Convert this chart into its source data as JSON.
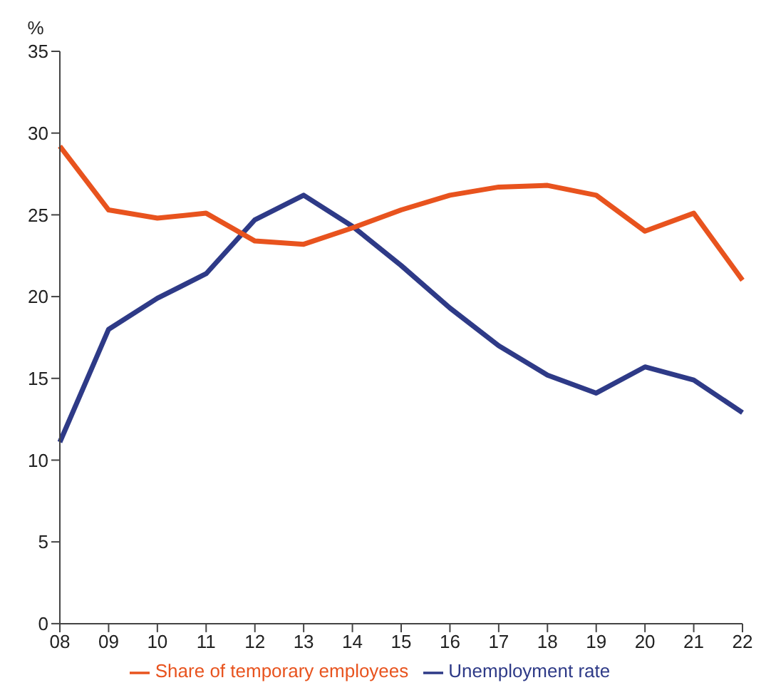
{
  "chart_data": {
    "type": "line",
    "ylabel": "%",
    "categories": [
      "08",
      "09",
      "10",
      "11",
      "12",
      "13",
      "14",
      "15",
      "16",
      "17",
      "18",
      "19",
      "20",
      "21",
      "22"
    ],
    "series": [
      {
        "name": "Unemployment rate",
        "color": "#2e3a87",
        "values": [
          11.1,
          18.0,
          19.9,
          21.4,
          24.7,
          26.2,
          24.3,
          21.9,
          19.3,
          17.0,
          15.2,
          14.1,
          15.7,
          14.9,
          12.9
        ]
      },
      {
        "name": "Share of temporary employees",
        "color": "#e8531e",
        "values": [
          29.2,
          25.3,
          24.8,
          25.1,
          23.4,
          23.2,
          24.2,
          25.3,
          26.2,
          26.7,
          26.8,
          26.2,
          24.0,
          25.1,
          21.0
        ]
      }
    ],
    "ylim": [
      0,
      35
    ],
    "yticks": [
      0,
      5,
      10,
      15,
      20,
      25,
      30,
      35
    ],
    "grid": false,
    "legend": "bottom",
    "marker": "none",
    "line_style": "solid"
  }
}
